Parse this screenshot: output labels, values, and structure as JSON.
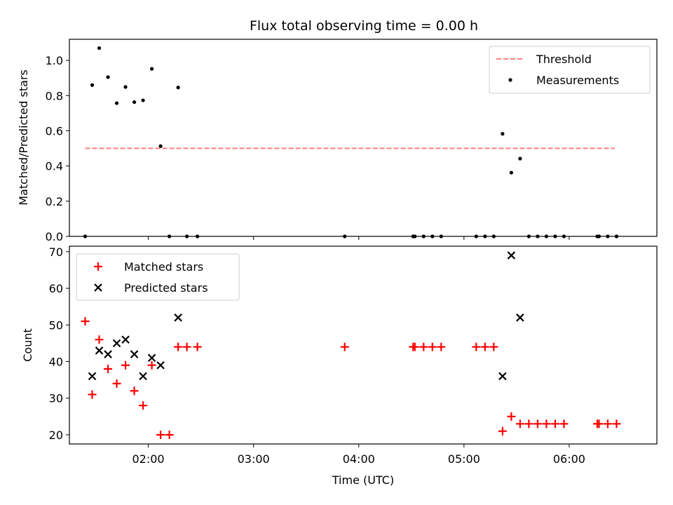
{
  "chart_data": [
    {
      "type": "scatter",
      "title": "Flux total observing time = 0.00 h",
      "ylabel": "Matched/Predicted stars",
      "ylim": [
        0,
        1.12
      ],
      "yticks": [
        "0.0",
        "0.2",
        "0.4",
        "0.6",
        "0.8",
        "1.0"
      ],
      "xlim": [
        "01:15",
        "06:50"
      ],
      "legend_position": "top-right",
      "threshold": {
        "name": "Threshold",
        "value": 0.5,
        "x_start": "01:24",
        "x_end": "06:26",
        "color": "#ff7f7f",
        "style": "dashed"
      },
      "series": [
        {
          "name": "Measurements",
          "color": "#000000",
          "marker": "dot",
          "points": [
            [
              "01:24",
              0.0
            ],
            [
              "01:28",
              0.86
            ],
            [
              "01:32",
              1.07
            ],
            [
              "01:37",
              0.905
            ],
            [
              "01:42",
              0.757
            ],
            [
              "01:47",
              0.849
            ],
            [
              "01:52",
              0.763
            ],
            [
              "01:57",
              0.773
            ],
            [
              "02:02",
              0.952
            ],
            [
              "02:07",
              0.513
            ],
            [
              "02:12",
              0.0
            ],
            [
              "02:17",
              0.846
            ],
            [
              "02:22",
              0.0
            ],
            [
              "02:28",
              0.0
            ],
            [
              "03:52",
              0.0
            ],
            [
              "04:31",
              0.0
            ],
            [
              "04:32",
              0.0
            ],
            [
              "04:37",
              0.0
            ],
            [
              "04:42",
              0.0
            ],
            [
              "04:47",
              0.0
            ],
            [
              "05:07",
              0.0
            ],
            [
              "05:12",
              0.0
            ],
            [
              "05:17",
              0.0
            ],
            [
              "05:22",
              0.583
            ],
            [
              "05:27",
              0.362
            ],
            [
              "05:32",
              0.442
            ],
            [
              "05:37",
              0.0
            ],
            [
              "05:42",
              0.0
            ],
            [
              "05:47",
              0.0
            ],
            [
              "05:52",
              0.0
            ],
            [
              "05:57",
              0.0
            ],
            [
              "06:16",
              0.0
            ],
            [
              "06:17",
              0.0
            ],
            [
              "06:22",
              0.0
            ],
            [
              "06:27",
              0.0
            ]
          ]
        }
      ]
    },
    {
      "type": "scatter",
      "xlabel": "Time (UTC)",
      "ylabel": "Count",
      "ylim": [
        17.5,
        71.5
      ],
      "yticks": [
        "20",
        "30",
        "40",
        "50",
        "60",
        "70"
      ],
      "xlim": [
        "01:15",
        "06:50"
      ],
      "xticks": [
        "02:00",
        "03:00",
        "04:00",
        "05:00",
        "06:00"
      ],
      "legend_position": "top-left",
      "series": [
        {
          "name": "Matched stars",
          "color": "#ff0000",
          "marker": "plus",
          "points": [
            [
              "01:24",
              51
            ],
            [
              "01:28",
              31
            ],
            [
              "01:32",
              46
            ],
            [
              "01:37",
              38
            ],
            [
              "01:42",
              34
            ],
            [
              "01:47",
              39
            ],
            [
              "01:52",
              32
            ],
            [
              "01:57",
              28
            ],
            [
              "02:02",
              39
            ],
            [
              "02:07",
              20
            ],
            [
              "02:12",
              20
            ],
            [
              "02:17",
              44
            ],
            [
              "02:22",
              44
            ],
            [
              "02:28",
              44
            ],
            [
              "03:52",
              44
            ],
            [
              "04:31",
              44
            ],
            [
              "04:32",
              44
            ],
            [
              "04:37",
              44
            ],
            [
              "04:42",
              44
            ],
            [
              "04:47",
              44
            ],
            [
              "05:07",
              44
            ],
            [
              "05:12",
              44
            ],
            [
              "05:17",
              44
            ],
            [
              "05:22",
              21
            ],
            [
              "05:27",
              25
            ],
            [
              "05:32",
              23
            ],
            [
              "05:37",
              23
            ],
            [
              "05:42",
              23
            ],
            [
              "05:47",
              23
            ],
            [
              "05:52",
              23
            ],
            [
              "05:57",
              23
            ],
            [
              "06:16",
              23
            ],
            [
              "06:17",
              23
            ],
            [
              "06:22",
              23
            ],
            [
              "06:27",
              23
            ]
          ]
        },
        {
          "name": "Predicted stars",
          "color": "#000000",
          "marker": "x",
          "points": [
            [
              "01:28",
              36
            ],
            [
              "01:32",
              43
            ],
            [
              "01:37",
              42
            ],
            [
              "01:42",
              45
            ],
            [
              "01:47",
              46
            ],
            [
              "01:52",
              42
            ],
            [
              "01:57",
              36
            ],
            [
              "02:02",
              41
            ],
            [
              "02:07",
              39
            ],
            [
              "02:17",
              52
            ],
            [
              "05:22",
              36
            ],
            [
              "05:27",
              69
            ],
            [
              "05:32",
              52
            ]
          ]
        }
      ]
    }
  ]
}
